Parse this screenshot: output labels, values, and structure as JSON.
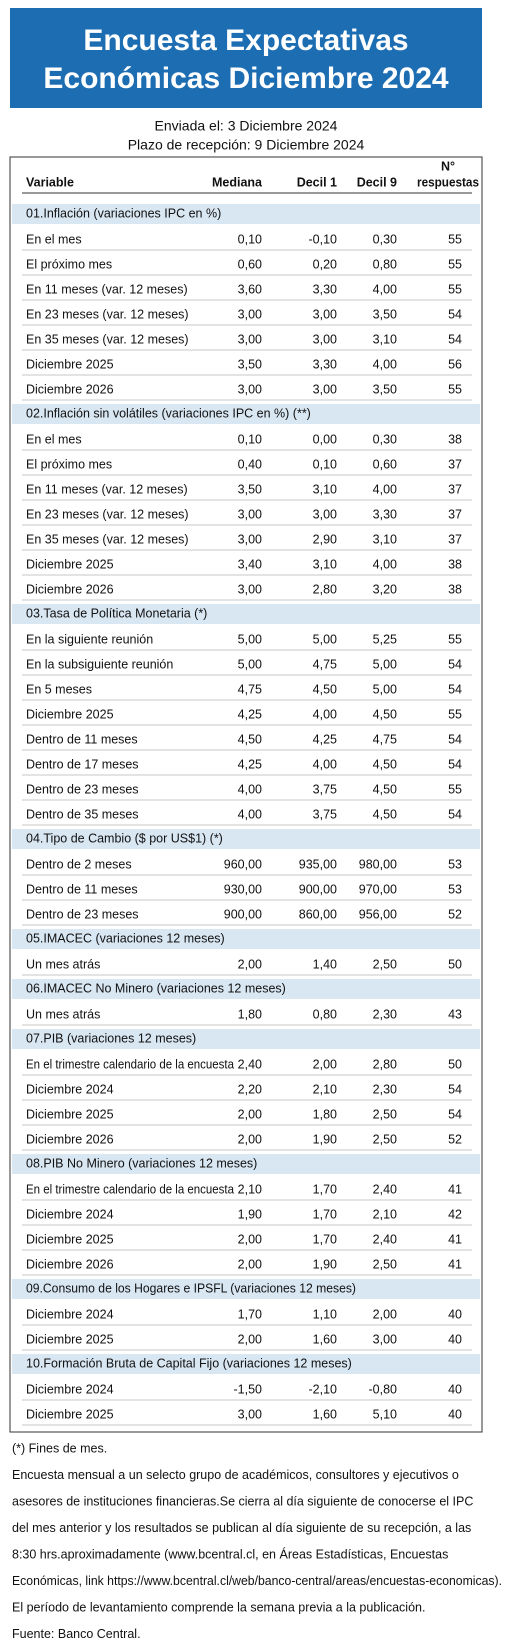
{
  "header": {
    "title": [
      "Encuesta Expectativas",
      "Económicas Diciembre 2024"
    ],
    "sent": "Enviada el: 3 Diciembre 2024",
    "deadline": "Plazo de recepción: 9 Diciembre 2024"
  },
  "table": {
    "columns": [
      "Variable",
      "Mediana",
      "Decil 1",
      "Decil 9",
      [
        "N°",
        "respuestas"
      ]
    ],
    "sections": [
      {
        "title": "01.Inflación (variaciones IPC en %)",
        "rows": [
          [
            "En el mes",
            "0,10",
            "-0,10",
            "0,30",
            "55"
          ],
          [
            "El próximo mes",
            "0,60",
            "0,20",
            "0,80",
            "55"
          ],
          [
            "En 11 meses (var. 12 meses)",
            "3,60",
            "3,30",
            "4,00",
            "55"
          ],
          [
            "En 23 meses (var. 12 meses)",
            "3,00",
            "3,00",
            "3,50",
            "54"
          ],
          [
            "En 35 meses (var. 12 meses)",
            "3,00",
            "3,00",
            "3,10",
            "54"
          ],
          [
            "Diciembre 2025",
            "3,50",
            "3,30",
            "4,00",
            "56"
          ],
          [
            "Diciembre 2026",
            "3,00",
            "3,00",
            "3,50",
            "55"
          ]
        ]
      },
      {
        "title": "02.Inflación sin volátiles (variaciones IPC en %) (**)",
        "rows": [
          [
            "En el mes",
            "0,10",
            "0,00",
            "0,30",
            "38"
          ],
          [
            "El próximo mes",
            "0,40",
            "0,10",
            "0,60",
            "37"
          ],
          [
            "En 11 meses (var. 12 meses)",
            "3,50",
            "3,10",
            "4,00",
            "37"
          ],
          [
            "En 23 meses (var. 12 meses)",
            "3,00",
            "3,00",
            "3,30",
            "37"
          ],
          [
            "En 35 meses (var. 12 meses)",
            "3,00",
            "2,90",
            "3,10",
            "37"
          ],
          [
            "Diciembre 2025",
            "3,40",
            "3,10",
            "4,00",
            "38"
          ],
          [
            "Diciembre 2026",
            "3,00",
            "2,80",
            "3,20",
            "38"
          ]
        ]
      },
      {
        "title": "03.Tasa de Política Monetaria  (*)",
        "rows": [
          [
            "En la siguiente reunión",
            "5,00",
            "5,00",
            "5,25",
            "55"
          ],
          [
            "En la subsiguiente reunión",
            "5,00",
            "4,75",
            "5,00",
            "54"
          ],
          [
            "En 5 meses",
            "4,75",
            "4,50",
            "5,00",
            "54"
          ],
          [
            "Diciembre 2025",
            "4,25",
            "4,00",
            "4,50",
            "55"
          ],
          [
            "Dentro de 11 meses",
            "4,50",
            "4,25",
            "4,75",
            "54"
          ],
          [
            "Dentro de 17 meses",
            "4,25",
            "4,00",
            "4,50",
            "54"
          ],
          [
            "Dentro de 23 meses",
            "4,00",
            "3,75",
            "4,50",
            "55"
          ],
          [
            "Dentro de 35 meses",
            "4,00",
            "3,75",
            "4,50",
            "54"
          ]
        ]
      },
      {
        "title": "04.Tipo de Cambio  ($ por US$1) (*)",
        "rows": [
          [
            "Dentro de 2 meses",
            "960,00",
            "935,00",
            "980,00",
            "53"
          ],
          [
            "Dentro de 11 meses",
            "930,00",
            "900,00",
            "970,00",
            "53"
          ],
          [
            "Dentro de 23 meses",
            "900,00",
            "860,00",
            "956,00",
            "52"
          ]
        ]
      },
      {
        "title": "05.IMACEC  (variaciones 12 meses)",
        "rows": [
          [
            "Un mes atrás",
            "2,00",
            "1,40",
            "2,50",
            "50"
          ]
        ]
      },
      {
        "title": "06.IMACEC No Minero (variaciones 12 meses)",
        "rows": [
          [
            "Un mes atrás",
            "1,80",
            "0,80",
            "2,30",
            "43"
          ]
        ]
      },
      {
        "title": "07.PIB  (variaciones 12 meses)",
        "rows": [
          [
            "En el trimestre calendario de la encuesta",
            "2,40",
            "2,00",
            "2,80",
            "50"
          ],
          [
            "Diciembre 2024",
            "2,20",
            "2,10",
            "2,30",
            "54"
          ],
          [
            "Diciembre 2025",
            "2,00",
            "1,80",
            "2,50",
            "54"
          ],
          [
            "Diciembre 2026",
            "2,00",
            "1,90",
            "2,50",
            "52"
          ]
        ]
      },
      {
        "title": "08.PIB No Minero (variaciones 12 meses)",
        "rows": [
          [
            "En el trimestre calendario de la encuesta",
            "2,10",
            "1,70",
            "2,40",
            "41"
          ],
          [
            "Diciembre 2024",
            "1,90",
            "1,70",
            "2,10",
            "42"
          ],
          [
            "Diciembre 2025",
            "2,00",
            "1,70",
            "2,40",
            "41"
          ],
          [
            "Diciembre 2026",
            "2,00",
            "1,90",
            "2,50",
            "41"
          ]
        ]
      },
      {
        "title": "09.Consumo de los Hogares e IPSFL  (variaciones 12 meses)",
        "rows": [
          [
            "Diciembre 2024",
            "1,70",
            "1,10",
            "2,00",
            "40"
          ],
          [
            "Diciembre 2025",
            "2,00",
            "1,60",
            "3,00",
            "40"
          ]
        ]
      },
      {
        "title": "10.Formación Bruta de Capital Fijo  (variaciones 12 meses)",
        "rows": [
          [
            "Diciembre 2024",
            "-1,50",
            "-2,10",
            "-0,80",
            "40"
          ],
          [
            "Diciembre 2025",
            "3,00",
            "1,60",
            "5,10",
            "40"
          ]
        ]
      }
    ]
  },
  "footnotes": [
    "(*) Fines de mes.",
    "Encuesta mensual a un selecto grupo de académicos, consultores y ejecutivos o",
    "asesores de instituciones financieras.Se cierra al día siguiente de conocerse el IPC",
    "del mes anterior y los resultados se publican al día siguiente de su recepción, a las",
    "8:30 hrs.aproximadamente (www.bcentral.cl, en Áreas Estadísticas, Encuestas",
    "Económicas, link https://www.bcentral.cl/web/banco-central/areas/encuestas-economicas).",
    "El período de levantamiento comprende la semana previa a la publicación.",
    "Fuente: Banco Central."
  ]
}
